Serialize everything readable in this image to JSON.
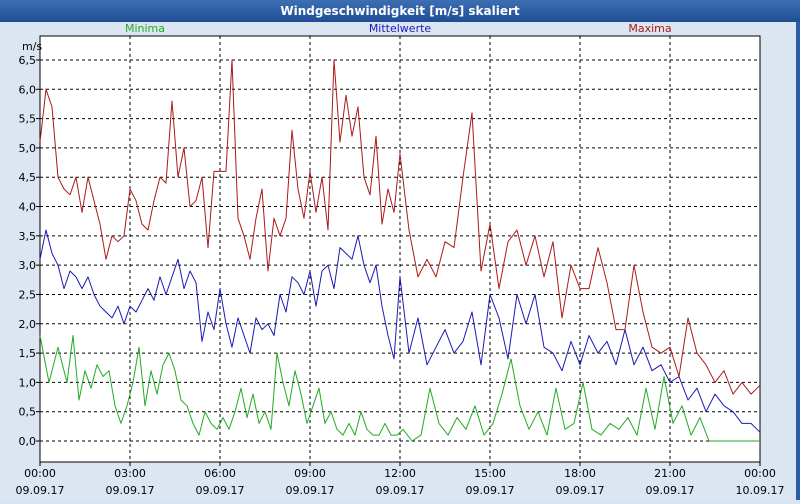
{
  "window": {
    "title": "Windgeschwindigkeit [m/s] skaliert"
  },
  "chart_data": {
    "type": "line",
    "title": "Windgeschwindigkeit [m/s] skaliert",
    "ylabel": "m/s",
    "ylim": [
      0,
      6.5
    ],
    "yticks": [
      "0,0",
      "0,5",
      "1,0",
      "1,5",
      "2,0",
      "2,5",
      "3,0",
      "3,5",
      "4,0",
      "4,5",
      "5,0",
      "5,5",
      "6,0",
      "6,5"
    ],
    "xlim_hours": [
      0,
      24
    ],
    "xticks": [
      {
        "time": "00:00",
        "date": "09.09.17"
      },
      {
        "time": "03:00",
        "date": "09.09.17"
      },
      {
        "time": "06:00",
        "date": "09.09.17"
      },
      {
        "time": "09:00",
        "date": "09.09.17"
      },
      {
        "time": "12:00",
        "date": "09.09.17"
      },
      {
        "time": "15:00",
        "date": "09.09.17"
      },
      {
        "time": "18:00",
        "date": "09.09.17"
      },
      {
        "time": "21:00",
        "date": "09.09.17"
      },
      {
        "time": "00:00",
        "date": "10.09.17"
      }
    ],
    "grid": true,
    "legend_placement": "top",
    "series": [
      {
        "name": "Minima",
        "color": "#22aa22",
        "x": [
          0,
          0.3,
          0.6,
          0.9,
          1.1,
          1.3,
          1.5,
          1.7,
          1.9,
          2.1,
          2.3,
          2.5,
          2.7,
          2.9,
          3.1,
          3.3,
          3.5,
          3.7,
          3.9,
          4.1,
          4.3,
          4.5,
          4.7,
          4.9,
          5.1,
          5.3,
          5.5,
          5.7,
          5.9,
          6.1,
          6.3,
          6.5,
          6.7,
          6.9,
          7.1,
          7.3,
          7.5,
          7.7,
          7.9,
          8.1,
          8.3,
          8.5,
          8.7,
          8.9,
          9.1,
          9.3,
          9.5,
          9.7,
          9.9,
          10.1,
          10.3,
          10.5,
          10.7,
          10.9,
          11.1,
          11.3,
          11.5,
          11.7,
          11.9,
          12.1,
          12.4,
          12.7,
          13.0,
          13.3,
          13.6,
          13.9,
          14.2,
          14.5,
          14.8,
          15.1,
          15.4,
          15.7,
          16.0,
          16.3,
          16.6,
          16.9,
          17.2,
          17.5,
          17.8,
          18.1,
          18.4,
          18.7,
          19.0,
          19.3,
          19.6,
          19.9,
          20.2,
          20.5,
          20.8,
          21.1,
          21.4,
          21.7,
          22.0,
          22.3,
          22.6,
          22.9,
          23.2,
          23.5,
          23.8,
          24.0
        ],
        "values": [
          1.8,
          1.0,
          1.6,
          1.0,
          1.8,
          0.7,
          1.2,
          0.9,
          1.3,
          1.1,
          1.2,
          0.6,
          0.3,
          0.6,
          1.0,
          1.6,
          0.6,
          1.2,
          0.8,
          1.3,
          1.5,
          1.2,
          0.7,
          0.6,
          0.3,
          0.1,
          0.5,
          0.3,
          0.2,
          0.4,
          0.2,
          0.5,
          0.9,
          0.4,
          0.8,
          0.3,
          0.5,
          0.2,
          1.5,
          1.0,
          0.6,
          1.2,
          0.8,
          0.3,
          0.6,
          0.9,
          0.3,
          0.5,
          0.2,
          0.1,
          0.3,
          0.1,
          0.5,
          0.2,
          0.1,
          0.1,
          0.3,
          0.1,
          0.1,
          0.2,
          0.0,
          0.1,
          0.9,
          0.3,
          0.1,
          0.4,
          0.2,
          0.6,
          0.1,
          0.3,
          0.8,
          1.4,
          0.6,
          0.2,
          0.5,
          0.1,
          0.9,
          0.2,
          0.3,
          1.0,
          0.2,
          0.1,
          0.3,
          0.2,
          0.4,
          0.1,
          0.9,
          0.2,
          1.1,
          0.3,
          0.6,
          0.1,
          0.4,
          0.0,
          0.0,
          0.0,
          0.0,
          0.0,
          0.0,
          0.0
        ]
      },
      {
        "name": "Mittelwerte",
        "color": "#1a1ab4",
        "x": [
          0,
          0.2,
          0.4,
          0.6,
          0.8,
          1.0,
          1.2,
          1.4,
          1.6,
          1.8,
          2.0,
          2.2,
          2.4,
          2.6,
          2.8,
          3.0,
          3.2,
          3.4,
          3.6,
          3.8,
          4.0,
          4.2,
          4.4,
          4.6,
          4.8,
          5.0,
          5.2,
          5.4,
          5.6,
          5.8,
          6.0,
          6.2,
          6.4,
          6.6,
          6.8,
          7.0,
          7.2,
          7.4,
          7.6,
          7.8,
          8.0,
          8.2,
          8.4,
          8.6,
          8.8,
          9.0,
          9.2,
          9.4,
          9.6,
          9.8,
          10.0,
          10.2,
          10.4,
          10.6,
          10.8,
          11.0,
          11.2,
          11.4,
          11.6,
          11.8,
          12.0,
          12.3,
          12.6,
          12.9,
          13.2,
          13.5,
          13.8,
          14.1,
          14.4,
          14.7,
          15.0,
          15.3,
          15.6,
          15.9,
          16.2,
          16.5,
          16.8,
          17.1,
          17.4,
          17.7,
          18.0,
          18.3,
          18.6,
          18.9,
          19.2,
          19.5,
          19.8,
          20.1,
          20.4,
          20.7,
          21.0,
          21.3,
          21.6,
          21.9,
          22.2,
          22.5,
          22.8,
          23.1,
          23.4,
          23.7,
          24.0
        ],
        "values": [
          3.1,
          3.6,
          3.2,
          3.0,
          2.6,
          2.9,
          2.8,
          2.6,
          2.8,
          2.5,
          2.3,
          2.2,
          2.1,
          2.3,
          2.0,
          2.3,
          2.2,
          2.4,
          2.6,
          2.4,
          2.8,
          2.5,
          2.8,
          3.1,
          2.6,
          2.9,
          2.7,
          1.7,
          2.2,
          1.9,
          2.6,
          2.0,
          1.6,
          2.1,
          1.8,
          1.5,
          2.1,
          1.9,
          2.0,
          1.8,
          2.5,
          2.2,
          2.8,
          2.7,
          2.5,
          2.9,
          2.3,
          2.9,
          3.0,
          2.6,
          3.3,
          3.2,
          3.1,
          3.5,
          3.0,
          2.7,
          3.0,
          2.3,
          1.8,
          1.4,
          2.8,
          1.5,
          2.1,
          1.3,
          1.6,
          1.9,
          1.5,
          1.7,
          2.2,
          1.3,
          2.5,
          2.1,
          1.4,
          2.5,
          2.0,
          2.5,
          1.6,
          1.5,
          1.2,
          1.7,
          1.3,
          1.8,
          1.5,
          1.7,
          1.3,
          1.9,
          1.3,
          1.6,
          1.2,
          1.3,
          1.0,
          1.1,
          0.7,
          0.9,
          0.5,
          0.8,
          0.6,
          0.5,
          0.3,
          0.3,
          0.15
        ]
      },
      {
        "name": "Maxima",
        "color": "#aa1a1a",
        "x": [
          0,
          0.2,
          0.4,
          0.6,
          0.8,
          1.0,
          1.2,
          1.4,
          1.6,
          1.8,
          2.0,
          2.2,
          2.4,
          2.6,
          2.8,
          3.0,
          3.2,
          3.4,
          3.6,
          3.8,
          4.0,
          4.2,
          4.4,
          4.6,
          4.8,
          5.0,
          5.2,
          5.4,
          5.6,
          5.8,
          6.0,
          6.2,
          6.4,
          6.6,
          6.8,
          7.0,
          7.2,
          7.4,
          7.6,
          7.8,
          8.0,
          8.2,
          8.4,
          8.6,
          8.8,
          9.0,
          9.2,
          9.4,
          9.6,
          9.8,
          10.0,
          10.2,
          10.4,
          10.6,
          10.8,
          11.0,
          11.2,
          11.4,
          11.6,
          11.8,
          12.0,
          12.3,
          12.6,
          12.9,
          13.2,
          13.5,
          13.8,
          14.1,
          14.4,
          14.7,
          15.0,
          15.3,
          15.6,
          15.9,
          16.2,
          16.5,
          16.8,
          17.1,
          17.4,
          17.7,
          18.0,
          18.3,
          18.6,
          18.9,
          19.2,
          19.5,
          19.8,
          20.1,
          20.4,
          20.7,
          21.0,
          21.3,
          21.6,
          21.9,
          22.2,
          22.5,
          22.8,
          23.1,
          23.4,
          23.7,
          24.0
        ],
        "values": [
          5.1,
          6.0,
          5.7,
          4.5,
          4.3,
          4.2,
          4.5,
          3.9,
          4.5,
          4.1,
          3.7,
          3.1,
          3.5,
          3.4,
          3.5,
          4.3,
          4.1,
          3.7,
          3.6,
          4.1,
          4.5,
          4.4,
          5.8,
          4.5,
          5.0,
          4.0,
          4.1,
          4.5,
          3.3,
          4.6,
          4.6,
          4.6,
          6.5,
          3.8,
          3.5,
          3.1,
          3.8,
          4.3,
          2.9,
          3.8,
          3.5,
          3.8,
          5.3,
          4.3,
          3.8,
          4.6,
          3.9,
          4.5,
          3.6,
          6.5,
          5.1,
          5.9,
          5.2,
          5.7,
          4.5,
          4.2,
          5.2,
          3.7,
          4.3,
          3.9,
          4.9,
          3.6,
          2.8,
          3.1,
          2.8,
          3.4,
          3.3,
          4.5,
          5.6,
          2.9,
          3.7,
          2.6,
          3.4,
          3.6,
          3.0,
          3.5,
          2.8,
          3.4,
          2.1,
          3.0,
          2.6,
          2.6,
          3.3,
          2.7,
          1.9,
          1.9,
          3.0,
          2.2,
          1.6,
          1.5,
          1.6,
          1.1,
          2.1,
          1.5,
          1.3,
          1.0,
          1.2,
          0.8,
          1.0,
          0.8,
          0.95
        ]
      }
    ]
  }
}
